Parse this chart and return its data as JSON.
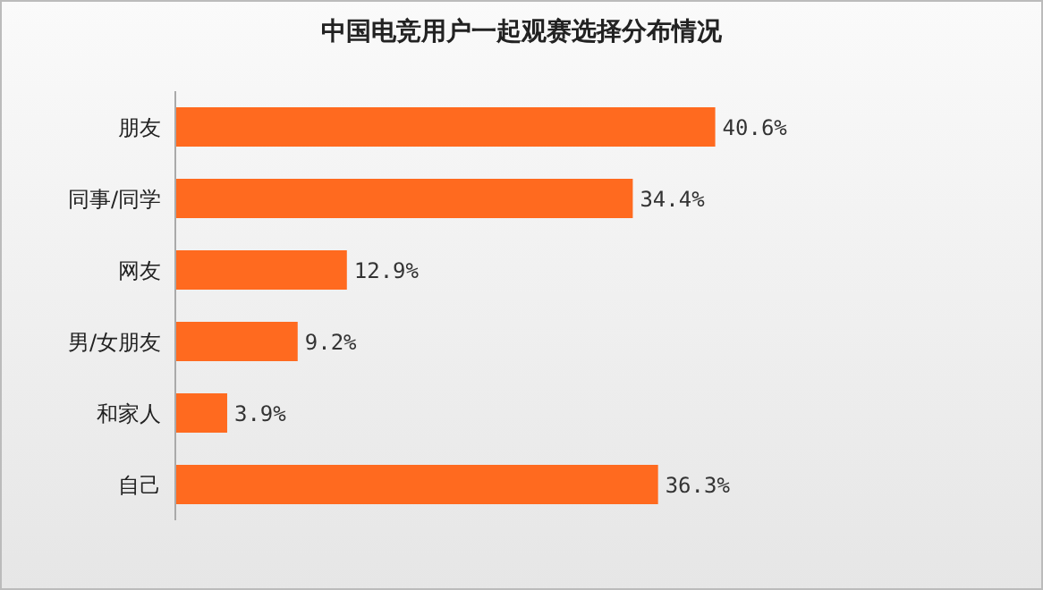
{
  "chart_data": {
    "type": "bar",
    "orientation": "horizontal",
    "title": "中国电竞用户一起观赛选择分布情况",
    "categories": [
      "朋友",
      "同事/同学",
      "网友",
      "男/女朋友",
      "和家人",
      "自己"
    ],
    "values": [
      40.6,
      34.4,
      12.9,
      9.2,
      3.9,
      36.3
    ],
    "value_labels": [
      "40.6%",
      "34.4%",
      "12.9%",
      "9.2%",
      "3.9%",
      "36.3%"
    ],
    "color": "#ff6a1f"
  }
}
